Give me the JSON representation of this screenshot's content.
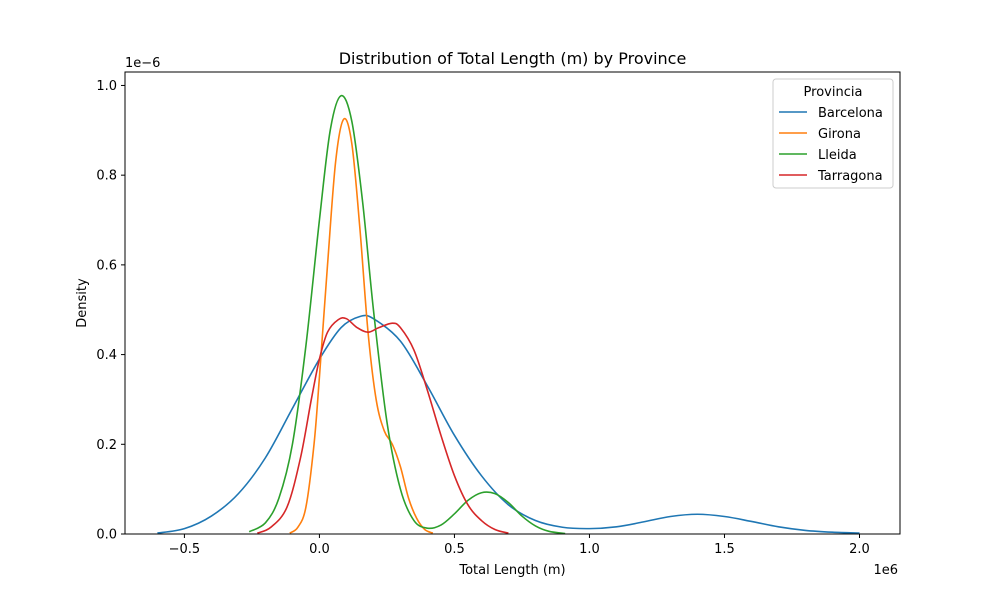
{
  "chart_data": {
    "type": "line",
    "title": "Distribution of Total Length (m) by Province",
    "xlabel": "Total Length (m)",
    "ylabel": "Density",
    "x_scale_label": "1e6",
    "y_scale_label": "1e−6",
    "xlim": [
      -0.72,
      2.15
    ],
    "ylim": [
      0,
      1.03
    ],
    "xticks": [
      {
        "value": -0.5,
        "label": "−0.5"
      },
      {
        "value": 0.0,
        "label": "0.0"
      },
      {
        "value": 0.5,
        "label": "0.5"
      },
      {
        "value": 1.0,
        "label": "1.0"
      },
      {
        "value": 1.5,
        "label": "1.5"
      },
      {
        "value": 2.0,
        "label": "2.0"
      }
    ],
    "yticks": [
      {
        "value": 0.0,
        "label": "0.0"
      },
      {
        "value": 0.2,
        "label": "0.2"
      },
      {
        "value": 0.4,
        "label": "0.4"
      },
      {
        "value": 0.6,
        "label": "0.6"
      },
      {
        "value": 0.8,
        "label": "0.8"
      },
      {
        "value": 1.0,
        "label": "1.0"
      }
    ],
    "grid": false,
    "legend": {
      "title": "Provincia",
      "placement": "top-right"
    },
    "series": [
      {
        "name": "Barcelona",
        "color": "#1f77b4",
        "points": [
          [
            -0.6,
            0.002
          ],
          [
            -0.5,
            0.012
          ],
          [
            -0.4,
            0.04
          ],
          [
            -0.3,
            0.09
          ],
          [
            -0.2,
            0.17
          ],
          [
            -0.1,
            0.28
          ],
          [
            0.0,
            0.39
          ],
          [
            0.08,
            0.46
          ],
          [
            0.15,
            0.485
          ],
          [
            0.2,
            0.48
          ],
          [
            0.3,
            0.43
          ],
          [
            0.4,
            0.33
          ],
          [
            0.5,
            0.22
          ],
          [
            0.6,
            0.13
          ],
          [
            0.7,
            0.065
          ],
          [
            0.8,
            0.03
          ],
          [
            0.9,
            0.015
          ],
          [
            1.0,
            0.012
          ],
          [
            1.1,
            0.016
          ],
          [
            1.2,
            0.027
          ],
          [
            1.3,
            0.039
          ],
          [
            1.4,
            0.044
          ],
          [
            1.5,
            0.039
          ],
          [
            1.6,
            0.028
          ],
          [
            1.7,
            0.016
          ],
          [
            1.8,
            0.008
          ],
          [
            1.9,
            0.004
          ],
          [
            2.0,
            0.002
          ]
        ]
      },
      {
        "name": "Girona",
        "color": "#ff7f0e",
        "points": [
          [
            -0.11,
            0.002
          ],
          [
            -0.08,
            0.015
          ],
          [
            -0.05,
            0.06
          ],
          [
            -0.02,
            0.2
          ],
          [
            0.0,
            0.35
          ],
          [
            0.03,
            0.6
          ],
          [
            0.06,
            0.83
          ],
          [
            0.09,
            0.925
          ],
          [
            0.12,
            0.87
          ],
          [
            0.15,
            0.68
          ],
          [
            0.18,
            0.45
          ],
          [
            0.21,
            0.3
          ],
          [
            0.24,
            0.23
          ],
          [
            0.27,
            0.2
          ],
          [
            0.3,
            0.15
          ],
          [
            0.33,
            0.08
          ],
          [
            0.36,
            0.035
          ],
          [
            0.39,
            0.01
          ],
          [
            0.42,
            0.002
          ]
        ]
      },
      {
        "name": "Lleida",
        "color": "#2ca02c",
        "points": [
          [
            -0.26,
            0.005
          ],
          [
            -0.2,
            0.025
          ],
          [
            -0.15,
            0.08
          ],
          [
            -0.1,
            0.2
          ],
          [
            -0.05,
            0.42
          ],
          [
            0.0,
            0.7
          ],
          [
            0.04,
            0.9
          ],
          [
            0.08,
            0.977
          ],
          [
            0.12,
            0.92
          ],
          [
            0.16,
            0.74
          ],
          [
            0.2,
            0.5
          ],
          [
            0.25,
            0.25
          ],
          [
            0.3,
            0.1
          ],
          [
            0.35,
            0.03
          ],
          [
            0.4,
            0.013
          ],
          [
            0.45,
            0.02
          ],
          [
            0.5,
            0.045
          ],
          [
            0.55,
            0.075
          ],
          [
            0.6,
            0.092
          ],
          [
            0.65,
            0.09
          ],
          [
            0.7,
            0.07
          ],
          [
            0.75,
            0.04
          ],
          [
            0.8,
            0.018
          ],
          [
            0.85,
            0.006
          ],
          [
            0.91,
            0.001
          ]
        ]
      },
      {
        "name": "Tarragona",
        "color": "#d62728",
        "points": [
          [
            -0.23,
            0.002
          ],
          [
            -0.18,
            0.015
          ],
          [
            -0.12,
            0.06
          ],
          [
            -0.07,
            0.17
          ],
          [
            -0.03,
            0.3
          ],
          [
            0.0,
            0.39
          ],
          [
            0.03,
            0.45
          ],
          [
            0.07,
            0.478
          ],
          [
            0.1,
            0.48
          ],
          [
            0.14,
            0.46
          ],
          [
            0.18,
            0.45
          ],
          [
            0.22,
            0.46
          ],
          [
            0.27,
            0.47
          ],
          [
            0.3,
            0.46
          ],
          [
            0.35,
            0.41
          ],
          [
            0.4,
            0.32
          ],
          [
            0.45,
            0.22
          ],
          [
            0.5,
            0.13
          ],
          [
            0.55,
            0.065
          ],
          [
            0.6,
            0.03
          ],
          [
            0.65,
            0.01
          ],
          [
            0.7,
            0.002
          ]
        ]
      }
    ]
  }
}
